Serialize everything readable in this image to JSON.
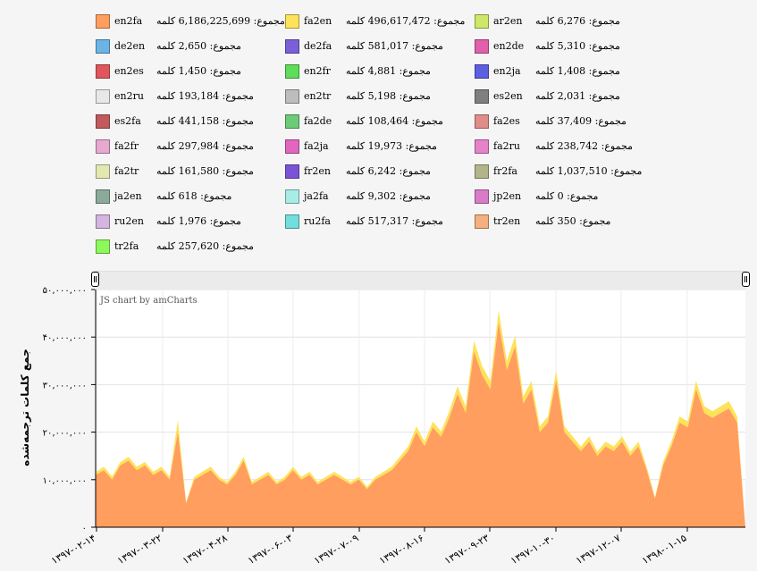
{
  "legend": [
    {
      "name": "en2fa",
      "value": "مجموع: 6,186,225,699 کلمه",
      "color": "#ff9e5e"
    },
    {
      "name": "fa2en",
      "value": "مجموع: 496,617,472 کلمه",
      "color": "#fde35a"
    },
    {
      "name": "ar2en",
      "value": "مجموع: 6,276 کلمه",
      "color": "#cee768"
    },
    {
      "name": "de2en",
      "value": "مجموع: 2,650 کلمه",
      "color": "#6ab4e6"
    },
    {
      "name": "de2fa",
      "value": "مجموع: 581,017 کلمه",
      "color": "#7b5fd9"
    },
    {
      "name": "en2de",
      "value": "مجموع: 5,310 کلمه",
      "color": "#e060ac"
    },
    {
      "name": "en2es",
      "value": "مجموع: 1,450 کلمه",
      "color": "#e0565c"
    },
    {
      "name": "en2fr",
      "value": "مجموع: 4,881 کلمه",
      "color": "#5fdc5a"
    },
    {
      "name": "en2ja",
      "value": "مجموع: 1,408 کلمه",
      "color": "#5b5fe0"
    },
    {
      "name": "en2ru",
      "value": "مجموع: 193,184 کلمه",
      "color": "#e8e8e8"
    },
    {
      "name": "en2tr",
      "value": "مجموع: 5,198 کلمه",
      "color": "#bdbdbd"
    },
    {
      "name": "es2en",
      "value": "مجموع: 2,031 کلمه",
      "color": "#7f7f7f"
    },
    {
      "name": "es2fa",
      "value": "مجموع: 441,158 کلمه",
      "color": "#c05a5c"
    },
    {
      "name": "fa2de",
      "value": "مجموع: 108,464 کلمه",
      "color": "#6ccb78"
    },
    {
      "name": "fa2es",
      "value": "مجموع: 37,409 کلمه",
      "color": "#e08c88"
    },
    {
      "name": "fa2fr",
      "value": "مجموع: 297,984 کلمه",
      "color": "#e8a8d0"
    },
    {
      "name": "fa2ja",
      "value": "مجموع: 19,973 کلمه",
      "color": "#e066c0"
    },
    {
      "name": "fa2ru",
      "value": "مجموع: 238,742 کلمه",
      "color": "#e682c8"
    },
    {
      "name": "fa2tr",
      "value": "مجموع: 161,580 کلمه",
      "color": "#e2e8b0"
    },
    {
      "name": "fr2en",
      "value": "مجموع: 6,242 کلمه",
      "color": "#7a54d8"
    },
    {
      "name": "fr2fa",
      "value": "مجموع: 1,037,510 کلمه",
      "color": "#b4b48a"
    },
    {
      "name": "ja2en",
      "value": "مجموع: 618 کلمه",
      "color": "#8aaa9a"
    },
    {
      "name": "ja2fa",
      "value": "مجموع: 9,302 کلمه",
      "color": "#a8ece6"
    },
    {
      "name": "jp2en",
      "value": "مجموع: 0 کلمه",
      "color": "#d87cc8"
    },
    {
      "name": "ru2en",
      "value": "مجموع: 1,976 کلمه",
      "color": "#d4b4e0"
    },
    {
      "name": "ru2fa",
      "value": "مجموع: 517,317 کلمه",
      "color": "#72dede"
    },
    {
      "name": "tr2en",
      "value": "مجموع: 350 کلمه",
      "color": "#f4b07e"
    },
    {
      "name": "tr2fa",
      "value": "مجموع: 257,620 کلمه",
      "color": "#8cf85c"
    }
  ],
  "credit": "JS chart by amCharts",
  "chart_data": {
    "type": "area",
    "stacked": true,
    "xlabel": "",
    "ylabel": "جمع کلمات ترجمه‌شده",
    "ylim": [
      0,
      50000000
    ],
    "yticks": [
      0,
      10000000,
      20000000,
      30000000,
      40000000,
      50000000
    ],
    "ytick_labels": [
      "۰",
      "۱۰,۰۰۰,۰۰۰",
      "۲۰,۰۰۰,۰۰۰",
      "۳۰,۰۰۰,۰۰۰",
      "۴۰,۰۰۰,۰۰۰",
      "۵۰,۰۰۰,۰۰۰"
    ],
    "xtick_labels": [
      "۱۳۹۷-۰۲-۱۴",
      "۱۳۹۷-۰۳-۲۲",
      "۱۳۹۷-۰۴-۲۸",
      "۱۳۹۷-۰۶-۰۳",
      "۱۳۹۷-۰۷-۰۹",
      "۱۳۹۷-۰۸-۱۶",
      "۱۳۹۷-۰۹-۲۳",
      "۱۳۹۷-۱۰-۳۰",
      "۱۳۹۷-۱۲-۰۷",
      "۱۳۹۸-۰۱-۱۵"
    ],
    "grid": true,
    "series": [
      {
        "name": "en2fa",
        "values": [
          11000000,
          12000000,
          10000000,
          13000000,
          14000000,
          12000000,
          13000000,
          11000000,
          12000000,
          10000000,
          20000000,
          5000000,
          10000000,
          11000000,
          12000000,
          10000000,
          9000000,
          11000000,
          14000000,
          9000000,
          10000000,
          11000000,
          9000000,
          10000000,
          12000000,
          10000000,
          11000000,
          9000000,
          10000000,
          11000000,
          10000000,
          9000000,
          10000000,
          8000000,
          10000000,
          11000000,
          12000000,
          14000000,
          16000000,
          20000000,
          17000000,
          21000000,
          19000000,
          23000000,
          28000000,
          24000000,
          37000000,
          32000000,
          29000000,
          43000000,
          33000000,
          38000000,
          26000000,
          29000000,
          20000000,
          22000000,
          31000000,
          20000000,
          18000000,
          16000000,
          18000000,
          15000000,
          17000000,
          16000000,
          18000000,
          15000000,
          17000000,
          12000000,
          6000000,
          13000000,
          17000000,
          22000000,
          21000000,
          29000000,
          24000000,
          23000000,
          24000000,
          25000000,
          22000000,
          0
        ]
      },
      {
        "name": "fa2en",
        "values": [
          600000,
          700000,
          650000,
          700000,
          800000,
          700000,
          750000,
          650000,
          700000,
          600000,
          2500000,
          300000,
          600000,
          700000,
          750000,
          600000,
          550000,
          650000,
          850000,
          550000,
          600000,
          650000,
          550000,
          600000,
          700000,
          600000,
          650000,
          550000,
          600000,
          650000,
          600000,
          550000,
          600000,
          500000,
          600000,
          650000,
          700000,
          850000,
          950000,
          1200000,
          1000000,
          1250000,
          1150000,
          1400000,
          1650000,
          1450000,
          2200000,
          1900000,
          1750000,
          2550000,
          1950000,
          2250000,
          1550000,
          1750000,
          1200000,
          1300000,
          1850000,
          1200000,
          1100000,
          950000,
          1100000,
          900000,
          1000000,
          950000,
          1100000,
          900000,
          1000000,
          700000,
          350000,
          800000,
          1000000,
          1300000,
          1250000,
          1750000,
          1450000,
          1400000,
          1450000,
          1500000,
          1300000,
          0
        ]
      }
    ]
  }
}
